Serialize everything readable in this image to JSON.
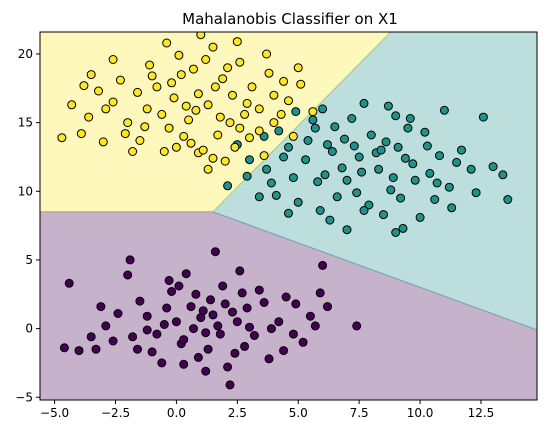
{
  "chart_data": {
    "type": "scatter",
    "title": "Mahalanobis Classifier on X1",
    "xlabel": "",
    "ylabel": "",
    "xlim": [
      -5.6,
      14.8
    ],
    "ylim": [
      -5.2,
      21.6
    ],
    "xticks": [
      -5.0,
      -2.5,
      0.0,
      2.5,
      5.0,
      7.5,
      10.0,
      12.5
    ],
    "xtick_labels": [
      "−5.0",
      "−2.5",
      "0.0",
      "2.5",
      "5.0",
      "7.5",
      "10.0",
      "12.5"
    ],
    "yticks": [
      -5,
      0,
      5,
      10,
      15,
      20
    ],
    "ytick_labels": [
      "−5",
      "0",
      "5",
      "10",
      "15",
      "20"
    ],
    "grid": false,
    "legend": "none",
    "decision_regions": [
      {
        "class": "purple",
        "color": "#440154",
        "opacity": 0.3,
        "polygon": [
          [
            -5.6,
            -5.2
          ],
          [
            14.8,
            -5.2
          ],
          [
            14.8,
            -0.1
          ],
          [
            1.5,
            8.5
          ],
          [
            -5.6,
            8.5
          ]
        ]
      },
      {
        "class": "teal",
        "color": "#21918c",
        "opacity": 0.3,
        "polygon": [
          [
            1.5,
            8.5
          ],
          [
            14.8,
            -0.1
          ],
          [
            14.8,
            21.6
          ],
          [
            8.8,
            21.6
          ]
        ]
      },
      {
        "class": "yellow",
        "color": "#fde725",
        "opacity": 0.3,
        "polygon": [
          [
            -5.6,
            8.5
          ],
          [
            1.5,
            8.5
          ],
          [
            8.8,
            21.6
          ],
          [
            -5.6,
            21.6
          ]
        ]
      }
    ],
    "series": [
      {
        "color": "#440154",
        "points": [
          [
            -0.5,
            0.3
          ],
          [
            0.2,
            -1.1
          ],
          [
            1.0,
            0.8
          ],
          [
            1.8,
            -0.4
          ],
          [
            2.3,
            1.2
          ],
          [
            3.0,
            0.1
          ],
          [
            1.4,
            2.1
          ],
          [
            0.6,
            1.6
          ],
          [
            -1.2,
            0.9
          ],
          [
            -1.8,
            -0.6
          ],
          [
            2.8,
            -1.3
          ],
          [
            3.6,
            1.9
          ],
          [
            4.2,
            0.5
          ],
          [
            1.9,
            3.1
          ],
          [
            0.9,
            -2.1
          ],
          [
            2.1,
            -2.8
          ],
          [
            -0.2,
            2.7
          ],
          [
            3.4,
            2.8
          ],
          [
            -2.4,
            1.1
          ],
          [
            -1.0,
            -1.7
          ],
          [
            4.8,
            -0.4
          ],
          [
            5.5,
            0.9
          ],
          [
            0.4,
            4.0
          ],
          [
            2.6,
            4.2
          ],
          [
            1.2,
            -0.3
          ],
          [
            -0.8,
            -0.4
          ],
          [
            0.0,
            0.5
          ],
          [
            1.5,
            1.0
          ],
          [
            2.5,
            0.5
          ],
          [
            3.2,
            -0.5
          ],
          [
            -1.5,
            2.0
          ],
          [
            -2.9,
            0.2
          ],
          [
            -3.5,
            -0.6
          ],
          [
            -4.6,
            -1.4
          ],
          [
            -4.4,
            3.3
          ],
          [
            -3.1,
            1.6
          ],
          [
            -2.0,
            3.9
          ],
          [
            -1.9,
            5.0
          ],
          [
            -0.3,
            3.5
          ],
          [
            1.6,
            5.6
          ],
          [
            6.0,
            4.6
          ],
          [
            6.2,
            1.6
          ],
          [
            5.9,
            2.6
          ],
          [
            4.9,
            1.8
          ],
          [
            7.4,
            0.2
          ],
          [
            5.2,
            -1.0
          ],
          [
            4.4,
            -1.6
          ],
          [
            3.8,
            -2.2
          ],
          [
            2.2,
            -4.1
          ],
          [
            1.2,
            -3.1
          ],
          [
            0.3,
            -2.6
          ],
          [
            -0.6,
            -2.5
          ],
          [
            -1.6,
            -1.5
          ],
          [
            -2.6,
            -0.9
          ],
          [
            -3.3,
            -1.5
          ],
          [
            -4.0,
            -1.6
          ],
          [
            0.8,
            2.5
          ],
          [
            1.7,
            0.2
          ],
          [
            2.0,
            1.8
          ],
          [
            0.3,
            -0.8
          ],
          [
            1.1,
            1.3
          ],
          [
            2.9,
            1.5
          ],
          [
            0.7,
            0.0
          ],
          [
            -0.4,
            1.5
          ],
          [
            3.9,
            0.0
          ],
          [
            1.3,
            -1.5
          ],
          [
            2.4,
            -1.8
          ],
          [
            -1.2,
            -0.1
          ],
          [
            4.5,
            2.3
          ],
          [
            0.1,
            3.1
          ],
          [
            5.7,
            0.2
          ],
          [
            2.7,
            2.6
          ]
        ]
      },
      {
        "color": "#21918c",
        "points": [
          [
            7.5,
            12.5
          ],
          [
            8.3,
            11.6
          ],
          [
            9.1,
            13.2
          ],
          [
            7.0,
            10.8
          ],
          [
            8.8,
            10.1
          ],
          [
            9.7,
            12.0
          ],
          [
            6.4,
            12.9
          ],
          [
            10.4,
            11.3
          ],
          [
            8.0,
            14.1
          ],
          [
            7.2,
            15.3
          ],
          [
            8.7,
            16.2
          ],
          [
            9.5,
            14.6
          ],
          [
            6.1,
            11.2
          ],
          [
            5.3,
            12.3
          ],
          [
            4.6,
            13.2
          ],
          [
            3.7,
            11.6
          ],
          [
            4.1,
            9.7
          ],
          [
            5.0,
            9.2
          ],
          [
            5.9,
            8.6
          ],
          [
            6.6,
            9.6
          ],
          [
            7.9,
            9.0
          ],
          [
            9.2,
            9.5
          ],
          [
            10.6,
            9.4
          ],
          [
            11.2,
            10.3
          ],
          [
            12.1,
            11.6
          ],
          [
            11.7,
            13.0
          ],
          [
            10.2,
            14.3
          ],
          [
            9.0,
            15.5
          ],
          [
            6.9,
            13.8
          ],
          [
            5.7,
            14.6
          ],
          [
            4.2,
            14.4
          ],
          [
            3.6,
            14.0
          ],
          [
            2.5,
            13.4
          ],
          [
            2.9,
            11.1
          ],
          [
            3.4,
            9.6
          ],
          [
            4.6,
            8.4
          ],
          [
            5.8,
            10.7
          ],
          [
            6.3,
            7.9
          ],
          [
            7.0,
            7.2
          ],
          [
            8.5,
            8.3
          ],
          [
            9.3,
            7.3
          ],
          [
            10.0,
            8.1
          ],
          [
            11.3,
            8.8
          ],
          [
            12.3,
            9.9
          ],
          [
            13.4,
            11.2
          ],
          [
            13.0,
            11.8
          ],
          [
            13.6,
            9.4
          ],
          [
            12.6,
            15.4
          ],
          [
            11.0,
            15.9
          ],
          [
            9.6,
            15.3
          ],
          [
            7.7,
            16.4
          ],
          [
            6.0,
            16.0
          ],
          [
            5.6,
            15.2
          ],
          [
            4.9,
            15.8
          ],
          [
            3.0,
            12.3
          ],
          [
            2.1,
            10.4
          ],
          [
            3.9,
            10.6
          ],
          [
            4.8,
            11.0
          ],
          [
            6.8,
            11.7
          ],
          [
            8.2,
            12.8
          ],
          [
            9.8,
            10.8
          ],
          [
            10.8,
            12.6
          ],
          [
            8.6,
            13.6
          ],
          [
            7.4,
            9.9
          ],
          [
            5.4,
            13.7
          ],
          [
            9.0,
            7.0
          ],
          [
            7.7,
            8.6
          ],
          [
            10.3,
            13.3
          ],
          [
            11.5,
            12.1
          ],
          [
            6.5,
            14.7
          ],
          [
            8.9,
            11.0
          ],
          [
            7.6,
            11.4
          ],
          [
            8.4,
            13.0
          ],
          [
            9.4,
            12.4
          ],
          [
            6.2,
            13.4
          ],
          [
            10.7,
            10.6
          ],
          [
            4.4,
            12.5
          ],
          [
            7.3,
            13.3
          ]
        ]
      },
      {
        "color": "#fde725",
        "points": [
          [
            0.5,
            15.2
          ],
          [
            1.3,
            16.3
          ],
          [
            -0.3,
            14.6
          ],
          [
            2.2,
            15.0
          ],
          [
            0.9,
            17.1
          ],
          [
            -1.2,
            16.0
          ],
          [
            2.9,
            16.4
          ],
          [
            1.7,
            14.1
          ],
          [
            -0.8,
            17.6
          ],
          [
            0.2,
            18.5
          ],
          [
            1.9,
            18.2
          ],
          [
            3.1,
            17.6
          ],
          [
            -2.0,
            15.0
          ],
          [
            -2.6,
            16.5
          ],
          [
            -1.5,
            13.7
          ],
          [
            0.6,
            13.5
          ],
          [
            2.4,
            13.2
          ],
          [
            3.4,
            14.4
          ],
          [
            4.3,
            15.6
          ],
          [
            4.0,
            17.0
          ],
          [
            3.8,
            18.6
          ],
          [
            2.6,
            19.4
          ],
          [
            1.5,
            20.5
          ],
          [
            0.1,
            19.9
          ],
          [
            -1.1,
            19.2
          ],
          [
            -2.3,
            18.1
          ],
          [
            -3.2,
            17.3
          ],
          [
            -3.6,
            15.4
          ],
          [
            -3.9,
            14.2
          ],
          [
            -4.7,
            13.9
          ],
          [
            -4.3,
            16.3
          ],
          [
            -3.5,
            18.5
          ],
          [
            -2.6,
            19.6
          ],
          [
            -0.4,
            20.8
          ],
          [
            1.0,
            21.4
          ],
          [
            2.5,
            20.9
          ],
          [
            3.7,
            20.0
          ],
          [
            5.0,
            19.0
          ],
          [
            5.1,
            17.8
          ],
          [
            4.6,
            16.6
          ],
          [
            5.6,
            15.8
          ],
          [
            4.8,
            14.0
          ],
          [
            3.6,
            12.6
          ],
          [
            2.0,
            12.2
          ],
          [
            0.9,
            12.8
          ],
          [
            -0.5,
            12.9
          ],
          [
            -1.8,
            12.9
          ],
          [
            -3.0,
            13.6
          ],
          [
            1.3,
            11.6
          ],
          [
            0.8,
            15.9
          ],
          [
            -0.1,
            16.8
          ],
          [
            1.6,
            17.6
          ],
          [
            2.8,
            15.6
          ],
          [
            0.3,
            14.0
          ],
          [
            -1.6,
            17.2
          ],
          [
            2.1,
            19.0
          ],
          [
            0.7,
            18.9
          ],
          [
            -2.1,
            14.2
          ],
          [
            3.0,
            13.9
          ],
          [
            1.1,
            13.0
          ],
          [
            -0.6,
            15.6
          ],
          [
            4.0,
            15.0
          ],
          [
            -1.0,
            18.4
          ],
          [
            2.3,
            17.0
          ],
          [
            0.4,
            16.2
          ],
          [
            1.8,
            15.4
          ],
          [
            -0.2,
            17.9
          ],
          [
            3.4,
            16.0
          ],
          [
            -2.9,
            16.0
          ],
          [
            1.2,
            19.6
          ],
          [
            -1.3,
            14.7
          ],
          [
            2.6,
            14.6
          ],
          [
            0.0,
            13.2
          ],
          [
            4.4,
            18.0
          ],
          [
            -3.8,
            17.7
          ],
          [
            1.5,
            12.4
          ]
        ]
      }
    ]
  }
}
